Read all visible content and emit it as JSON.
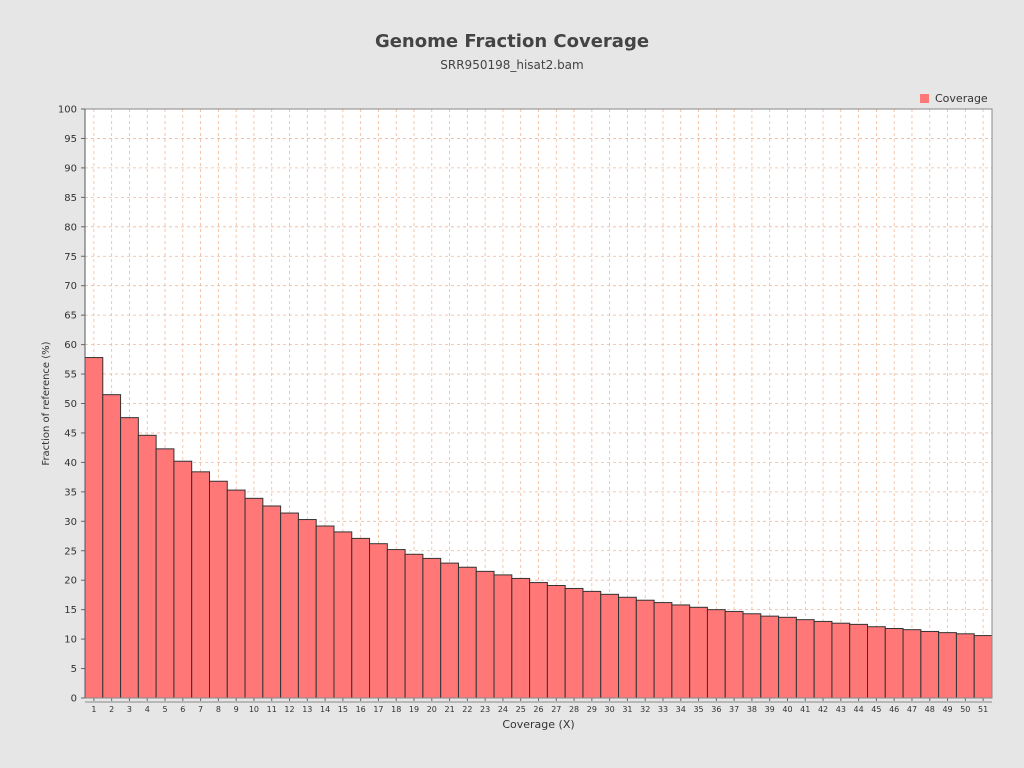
{
  "chart_data": {
    "type": "bar",
    "title": "Genome Fraction Coverage",
    "subtitle": "SRR950198_hisat2.bam",
    "xlabel": "Coverage (X)",
    "ylabel": "Fraction of reference (%)",
    "ylim": [
      0,
      100
    ],
    "yticks": [
      0,
      5,
      10,
      15,
      20,
      25,
      30,
      35,
      40,
      45,
      50,
      55,
      60,
      65,
      70,
      75,
      80,
      85,
      90,
      95,
      100
    ],
    "grid": true,
    "legend_position": "top-right",
    "colors": {
      "bar": "#ff7777",
      "bar_stroke": "#333333",
      "grid": "#f0b898",
      "plot_bg": "#ffffff",
      "page_bg": "#e6e6e6"
    },
    "categories": [
      "1",
      "2",
      "3",
      "4",
      "5",
      "6",
      "7",
      "8",
      "9",
      "10",
      "11",
      "12",
      "13",
      "14",
      "15",
      "16",
      "17",
      "18",
      "19",
      "20",
      "21",
      "22",
      "23",
      "24",
      "25",
      "26",
      "27",
      "28",
      "29",
      "30",
      "31",
      "32",
      "33",
      "34",
      "35",
      "36",
      "37",
      "38",
      "39",
      "40",
      "41",
      "42",
      "43",
      "44",
      "45",
      "46",
      "47",
      "48",
      "49",
      "50",
      "51"
    ],
    "series": [
      {
        "name": "Coverage",
        "values": [
          57.8,
          51.5,
          47.6,
          44.6,
          42.3,
          40.2,
          38.4,
          36.8,
          35.3,
          33.9,
          32.6,
          31.4,
          30.3,
          29.2,
          28.2,
          27.1,
          26.2,
          25.2,
          24.4,
          23.7,
          22.9,
          22.2,
          21.5,
          20.9,
          20.3,
          19.6,
          19.1,
          18.6,
          18.1,
          17.6,
          17.1,
          16.6,
          16.2,
          15.8,
          15.4,
          15.0,
          14.7,
          14.3,
          13.9,
          13.7,
          13.3,
          13.0,
          12.7,
          12.5,
          12.1,
          11.8,
          11.6,
          11.3,
          11.1,
          10.9,
          10.6
        ]
      }
    ]
  }
}
